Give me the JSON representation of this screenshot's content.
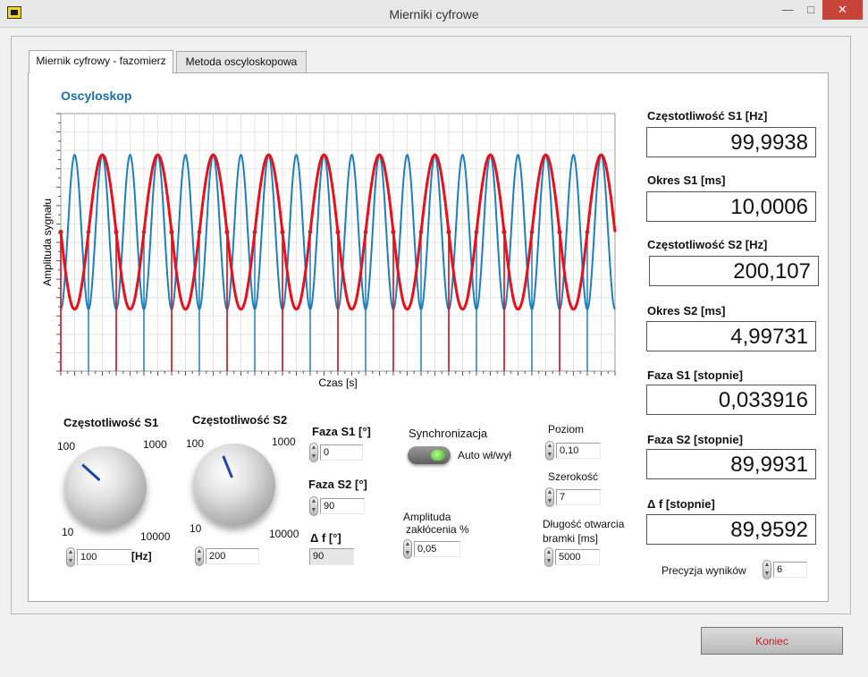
{
  "window": {
    "title": "Mierniki cyfrowe"
  },
  "tabs": [
    {
      "label": "Miernik cyfrowy - fazomierz"
    },
    {
      "label": "Metoda oscyloskopowa"
    }
  ],
  "oscilloscope": {
    "title": "Oscyloskop",
    "xlabel": "Czas [s]",
    "ylabel": "Amplituda sygnału"
  },
  "chart_data": {
    "type": "line",
    "title": "Oscyloskop",
    "xlabel": "Czas [s]",
    "ylabel": "Amplituda sygnału",
    "grid": true,
    "x_periods_visible": {
      "S1": 10,
      "S2": 20
    },
    "series": [
      {
        "name": "S1",
        "frequency_hz": 100,
        "phase_deg": 0,
        "color": "#e8101a"
      },
      {
        "name": "S2",
        "frequency_hz": 200,
        "phase_deg": 90,
        "color": "#1e7fc0"
      }
    ]
  },
  "controls": {
    "freq_s1": {
      "label": "Częstotliwość S1",
      "value": "100",
      "unit": "[Hz]",
      "scale_min": "10",
      "scale_low": "100",
      "scale_high": "1000",
      "scale_max": "10000"
    },
    "freq_s2": {
      "label": "Częstotliwość S2",
      "value": "200",
      "scale_min": "10",
      "scale_low": "100",
      "scale_high": "1000",
      "scale_max": "10000"
    },
    "phase_s1": {
      "label": "Faza S1 [°]",
      "value": "0"
    },
    "phase_s2": {
      "label": "Faza S2 [°]",
      "value": "90"
    },
    "delta_f": {
      "label": "Δ f [°]",
      "value": "90"
    },
    "sync": {
      "label": "Synchronizacja",
      "toggle_label": "Auto wł/wył"
    },
    "noise": {
      "label_line1": "Amplituda",
      "label_line2": "zakłócenia %",
      "value": "0,05"
    },
    "level": {
      "label": "Poziom",
      "value": "0,10"
    },
    "width": {
      "label": "Szerokość",
      "value": "7"
    },
    "gate": {
      "label_line1": "Długość otwarcia",
      "label_line2": "bramki [ms]",
      "value": "5000"
    },
    "precision": {
      "label": "Precyzja wyników",
      "value": "6"
    }
  },
  "indicators": [
    {
      "label": "Częstotliwość S1 [Hz]",
      "value": "99,9938"
    },
    {
      "label": "Okres S1 [ms]",
      "value": "10,0006"
    },
    {
      "label": "Częstotliwość S2 [Hz]",
      "value": "200,107"
    },
    {
      "label": "Okres S2 [ms]",
      "value": "4,99731"
    },
    {
      "label": "Faza S1 [stopnie]",
      "value": "0,033916"
    },
    {
      "label": "Faza S2 [stopnie]",
      "value": "89,9931"
    },
    {
      "label": "Δ f [stopnie]",
      "value": "89,9592"
    }
  ],
  "footer": {
    "exit_label": "Koniec"
  }
}
